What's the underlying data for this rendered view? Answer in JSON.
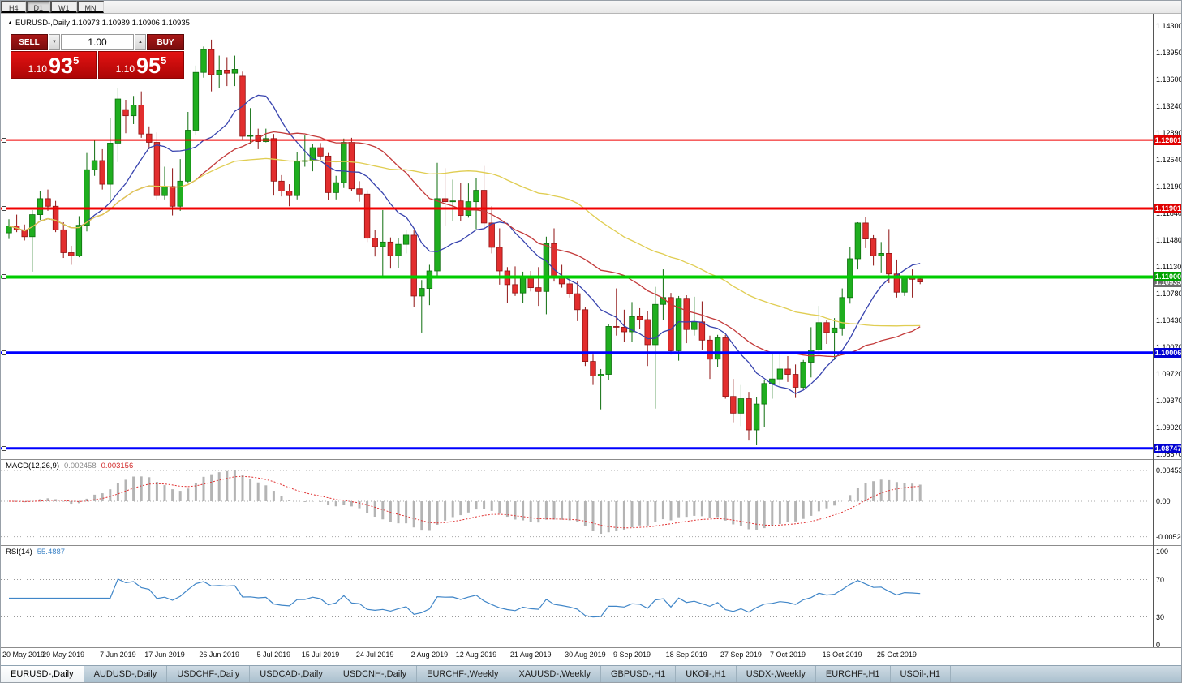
{
  "icons": {
    "expand_arrow": "▲",
    "volume_up": "▲",
    "volume_down": "▼"
  },
  "toolbar": {
    "timeframes": [
      {
        "label": "H4",
        "active": false
      },
      {
        "label": "D1",
        "active": true
      },
      {
        "label": "W1",
        "active": false
      },
      {
        "label": "MN",
        "active": false
      }
    ]
  },
  "chart_header": {
    "title": "EURUSD-,Daily 1.10973 1.10989 1.10906 1.10935"
  },
  "trade_panel": {
    "sell_label": "SELL",
    "buy_label": "BUY",
    "volume": "1.00",
    "sell_price": {
      "prefix": "1.10",
      "big": "93",
      "sup": "5"
    },
    "buy_price": {
      "prefix": "1.10",
      "big": "95",
      "sup": "5"
    }
  },
  "colors": {
    "bull": "#1fae1f",
    "bear": "#e22e2e",
    "bull_border": "#0e6e0e",
    "bear_border": "#8f1212",
    "hline_red": "#f00000",
    "hline_green": "#00cc00",
    "hline_blue": "#0000ff",
    "tag_red": "#e00000",
    "tag_green": "#00a300",
    "tag_blue": "#0000d2",
    "tag_current": "#6e6e6e",
    "macd_hist": "#b4b4b4",
    "macd_signal": "#e03232",
    "rsi_line": "#4086c8",
    "separator": "#8c8c8c"
  },
  "price_axis": [
    "1.14300",
    "1.13950",
    "1.13600",
    "1.13240",
    "1.12890",
    "1.12540",
    "1.12190",
    "1.11840",
    "1.11480",
    "1.11130",
    "1.10780",
    "1.10430",
    "1.10070",
    "1.09720",
    "1.09370",
    "1.09020",
    "1.08670"
  ],
  "hlines": [
    {
      "price": 1.12801,
      "label": "1.12801",
      "color_key": "red",
      "thick": 2
    },
    {
      "price": 1.11901,
      "label": "1.11901",
      "color_key": "red",
      "thick": 3
    },
    {
      "price": 1.11,
      "label": "1.11000",
      "color_key": "green",
      "thick": 4
    },
    {
      "price": 1.10006,
      "label": "1.10006",
      "color_key": "blue",
      "thick": 3
    },
    {
      "price": 1.08747,
      "label": "1.08747",
      "color_key": "blue",
      "thick": 3
    }
  ],
  "current_price_tag": {
    "price": 1.10935,
    "label": "1.10935"
  },
  "macd_panel": {
    "name": "MACD(12,26,9)",
    "main_value": "0.002458",
    "signal_value": "0.003156",
    "axis_labels": [
      "0.00453",
      "0.00",
      "-0.00520"
    ],
    "axis_values": [
      0.00453,
      0,
      -0.0052
    ]
  },
  "rsi_panel": {
    "name": "RSI(14)",
    "value": "55.4887",
    "axis_labels": [
      "100",
      "70",
      "30",
      "0"
    ],
    "axis_values": [
      100,
      70,
      30,
      0
    ],
    "level_lines": [
      70,
      30
    ]
  },
  "tabs": [
    {
      "label": "EURUSD-,Daily",
      "active": true
    },
    {
      "label": "AUDUSD-,Daily",
      "active": false
    },
    {
      "label": "USDCHF-,Daily",
      "active": false
    },
    {
      "label": "USDCAD-,Daily",
      "active": false
    },
    {
      "label": "USDCNH-,Daily",
      "active": false
    },
    {
      "label": "EURCHF-,Weekly",
      "active": false
    },
    {
      "label": "XAUUSD-,Weekly",
      "active": false
    },
    {
      "label": "GBPUSD-,H1",
      "active": false
    },
    {
      "label": "UKOil-,H1",
      "active": false
    },
    {
      "label": "USDX-,Weekly",
      "active": false
    },
    {
      "label": "EURCHF-,H1",
      "active": false
    },
    {
      "label": "USOil-,H1",
      "active": false
    }
  ],
  "chart_data": {
    "type": "candlestick",
    "symbol": "EURUSD-",
    "timeframe": "Daily",
    "ohlc": {
      "open": 1.10973,
      "high": 1.10989,
      "low": 1.10906,
      "close": 1.10935
    },
    "y_axis": {
      "top_price": 1.143,
      "bottom_price": 1.0867
    },
    "moving_averages": [
      {
        "name": "fast",
        "period": 10,
        "color": "#3743ae"
      },
      {
        "name": "medium",
        "period": 25,
        "color": "#c33a3a"
      },
      {
        "name": "slow",
        "period": 50,
        "color": "#e0cd52"
      }
    ],
    "indicators": {
      "macd": {
        "fast": 12,
        "slow": 26,
        "signal": 9
      },
      "rsi": {
        "period": 14
      }
    },
    "date_labels": [
      {
        "text": "20 May 2019",
        "index": 0
      },
      {
        "text": "29 May 2019",
        "index": 7
      },
      {
        "text": "7 Jun 2019",
        "index": 14
      },
      {
        "text": "17 Jun 2019",
        "index": 20
      },
      {
        "text": "26 Jun 2019",
        "index": 27
      },
      {
        "text": "5 Jul 2019",
        "index": 34
      },
      {
        "text": "15 Jul 2019",
        "index": 40
      },
      {
        "text": "24 Jul 2019",
        "index": 47
      },
      {
        "text": "2 Aug 2019",
        "index": 54
      },
      {
        "text": "12 Aug 2019",
        "index": 60
      },
      {
        "text": "21 Aug 2019",
        "index": 67
      },
      {
        "text": "30 Aug 2019",
        "index": 74
      },
      {
        "text": "9 Sep 2019",
        "index": 80
      },
      {
        "text": "18 Sep 2019",
        "index": 87
      },
      {
        "text": "27 Sep 2019",
        "index": 94
      },
      {
        "text": "7 Oct 2019",
        "index": 100
      },
      {
        "text": "16 Oct 2019",
        "index": 107
      },
      {
        "text": "25 Oct 2019",
        "index": 114
      }
    ],
    "candles": [
      [
        1.1158,
        1.1176,
        1.115,
        1.1167
      ],
      [
        1.1167,
        1.1182,
        1.1159,
        1.1162
      ],
      [
        1.1162,
        1.1169,
        1.1148,
        1.1153
      ],
      [
        1.1153,
        1.1188,
        1.1107,
        1.1182
      ],
      [
        1.1182,
        1.1213,
        1.1175,
        1.1203
      ],
      [
        1.1203,
        1.1215,
        1.1187,
        1.1193
      ],
      [
        1.1193,
        1.12,
        1.1159,
        1.1162
      ],
      [
        1.1162,
        1.1172,
        1.1125,
        1.1132
      ],
      [
        1.1132,
        1.1141,
        1.1116,
        1.1128
      ],
      [
        1.1128,
        1.118,
        1.1126,
        1.1168
      ],
      [
        1.1168,
        1.1263,
        1.116,
        1.1241
      ],
      [
        1.1241,
        1.128,
        1.1233,
        1.1253
      ],
      [
        1.1253,
        1.1268,
        1.1215,
        1.1222
      ],
      [
        1.1222,
        1.1309,
        1.1201,
        1.1276
      ],
      [
        1.1276,
        1.1348,
        1.1251,
        1.1334
      ],
      [
        1.132,
        1.1333,
        1.1289,
        1.1312
      ],
      [
        1.1312,
        1.1338,
        1.1301,
        1.1326
      ],
      [
        1.1326,
        1.1344,
        1.1283,
        1.1288
      ],
      [
        1.1288,
        1.1298,
        1.1268,
        1.1277
      ],
      [
        1.1277,
        1.129,
        1.1202,
        1.1207
      ],
      [
        1.1207,
        1.1245,
        1.1202,
        1.1219
      ],
      [
        1.1219,
        1.1243,
        1.1181,
        1.1193
      ],
      [
        1.1193,
        1.1255,
        1.1187,
        1.1226
      ],
      [
        1.1226,
        1.1317,
        1.1223,
        1.1293
      ],
      [
        1.1293,
        1.1378,
        1.1287,
        1.1369
      ],
      [
        1.1369,
        1.1403,
        1.1362,
        1.1399
      ],
      [
        1.1399,
        1.1412,
        1.1344,
        1.1366
      ],
      [
        1.1366,
        1.1391,
        1.1348,
        1.1372
      ],
      [
        1.1372,
        1.1389,
        1.1351,
        1.1368
      ],
      [
        1.1368,
        1.1391,
        1.1351,
        1.1373
      ],
      [
        1.1364,
        1.137,
        1.1281,
        1.1285
      ],
      [
        1.1285,
        1.1322,
        1.1275,
        1.1286
      ],
      [
        1.1286,
        1.1295,
        1.1268,
        1.1278
      ],
      [
        1.1278,
        1.1295,
        1.1277,
        1.1282
      ],
      [
        1.1282,
        1.1288,
        1.1207,
        1.1226
      ],
      [
        1.1226,
        1.1234,
        1.1206,
        1.1213
      ],
      [
        1.1213,
        1.1222,
        1.1193,
        1.1207
      ],
      [
        1.1207,
        1.1264,
        1.1202,
        1.1252
      ],
      [
        1.1252,
        1.1286,
        1.1245,
        1.1253
      ],
      [
        1.1253,
        1.1275,
        1.1239,
        1.127
      ],
      [
        1.127,
        1.1276,
        1.1254,
        1.1259
      ],
      [
        1.1259,
        1.1263,
        1.1201,
        1.1211
      ],
      [
        1.1211,
        1.1233,
        1.1202,
        1.1224
      ],
      [
        1.1224,
        1.1282,
        1.1217,
        1.1277
      ],
      [
        1.1277,
        1.1283,
        1.1213,
        1.1216
      ],
      [
        1.1216,
        1.1226,
        1.1199,
        1.1209
      ],
      [
        1.1209,
        1.1214,
        1.1146,
        1.1151
      ],
      [
        1.1151,
        1.1162,
        1.1127,
        1.114
      ],
      [
        1.114,
        1.1188,
        1.1101,
        1.1146
      ],
      [
        1.1146,
        1.1152,
        1.1111,
        1.1128
      ],
      [
        1.1128,
        1.1151,
        1.1112,
        1.1143
      ],
      [
        1.1143,
        1.1162,
        1.1131,
        1.1155
      ],
      [
        1.1155,
        1.1162,
        1.106,
        1.1075
      ],
      [
        1.1075,
        1.1096,
        1.1027,
        1.1085
      ],
      [
        1.1085,
        1.1116,
        1.1063,
        1.1108
      ],
      [
        1.1108,
        1.125,
        1.1101,
        1.1203
      ],
      [
        1.1203,
        1.1243,
        1.1167,
        1.1199
      ],
      [
        1.1199,
        1.1228,
        1.1173,
        1.12
      ],
      [
        1.12,
        1.1224,
        1.1174,
        1.1181
      ],
      [
        1.1181,
        1.1223,
        1.1178,
        1.1199
      ],
      [
        1.1199,
        1.123,
        1.1163,
        1.1214
      ],
      [
        1.1214,
        1.1246,
        1.1162,
        1.1171
      ],
      [
        1.1171,
        1.1193,
        1.1131,
        1.1139
      ],
      [
        1.1139,
        1.1164,
        1.109,
        1.1108
      ],
      [
        1.1108,
        1.1113,
        1.1066,
        1.109
      ],
      [
        1.109,
        1.1114,
        1.1075,
        1.1079
      ],
      [
        1.1079,
        1.1107,
        1.1066,
        1.11
      ],
      [
        1.11,
        1.1108,
        1.1081,
        1.1086
      ],
      [
        1.1086,
        1.1113,
        1.1062,
        1.1081
      ],
      [
        1.1081,
        1.1153,
        1.1051,
        1.1144
      ],
      [
        1.1144,
        1.1164,
        1.1094,
        1.1101
      ],
      [
        1.1101,
        1.1116,
        1.1086,
        1.1091
      ],
      [
        1.1091,
        1.1098,
        1.1073,
        1.1078
      ],
      [
        1.1078,
        1.1094,
        1.1042,
        1.1057
      ],
      [
        1.1057,
        1.1061,
        1.0983,
        1.0989
      ],
      [
        1.0989,
        1.0998,
        1.0958,
        1.097
      ],
      [
        1.097,
        1.0979,
        1.0926,
        1.0972
      ],
      [
        1.0972,
        1.1038,
        1.0965,
        1.1035
      ],
      [
        1.1035,
        1.1085,
        1.1023,
        1.1034
      ],
      [
        1.1034,
        1.1057,
        1.1015,
        1.1028
      ],
      [
        1.1028,
        1.1067,
        1.1015,
        1.1048
      ],
      [
        1.1048,
        1.1059,
        1.1032,
        1.1044
      ],
      [
        1.1044,
        1.1055,
        1.0983,
        1.1011
      ],
      [
        1.1011,
        1.1087,
        1.0927,
        1.1064
      ],
      [
        1.1064,
        1.111,
        1.1043,
        1.1073
      ],
      [
        1.1073,
        1.1079,
        1.0998,
        1.1003
      ],
      [
        1.1003,
        1.1075,
        1.099,
        1.1072
      ],
      [
        1.1072,
        1.1076,
        1.1013,
        1.1031
      ],
      [
        1.1031,
        1.1074,
        1.1023,
        1.1041
      ],
      [
        1.1041,
        1.1068,
        1.1004,
        1.1017
      ],
      [
        1.1017,
        1.1023,
        1.0966,
        1.0992
      ],
      [
        1.0992,
        1.1024,
        1.0982,
        1.102
      ],
      [
        1.102,
        1.1024,
        1.094,
        1.0943
      ],
      [
        1.0943,
        1.0966,
        1.0909,
        1.0921
      ],
      [
        1.0921,
        1.0958,
        1.0904,
        1.094
      ],
      [
        1.094,
        1.0949,
        1.0885,
        1.0899
      ],
      [
        1.0899,
        1.0942,
        1.0879,
        1.0933
      ],
      [
        1.0933,
        1.0965,
        1.0903,
        1.096
      ],
      [
        1.096,
        1.0999,
        1.094,
        1.0966
      ],
      [
        1.0966,
        1.0999,
        1.0957,
        1.0979
      ],
      [
        1.0979,
        1.0996,
        1.0962,
        1.0972
      ],
      [
        1.0972,
        1.0985,
        1.0941,
        1.0955
      ],
      [
        1.0955,
        1.0991,
        1.0953,
        1.0988
      ],
      [
        1.0988,
        1.1034,
        1.0968,
        1.1004
      ],
      [
        1.1004,
        1.1062,
        1.1002,
        1.104
      ],
      [
        1.104,
        1.1043,
        1.1012,
        1.1027
      ],
      [
        1.1027,
        1.1046,
        1.0991,
        1.1033
      ],
      [
        1.1033,
        1.1085,
        1.1023,
        1.1073
      ],
      [
        1.1073,
        1.114,
        1.1065,
        1.1124
      ],
      [
        1.1124,
        1.1172,
        1.111,
        1.1171
      ],
      [
        1.1171,
        1.1179,
        1.1138,
        1.115
      ],
      [
        1.115,
        1.1155,
        1.1115,
        1.1128
      ],
      [
        1.1128,
        1.1146,
        1.1106,
        1.1131
      ],
      [
        1.1131,
        1.1163,
        1.1092,
        1.1104
      ],
      [
        1.1104,
        1.1123,
        1.1073,
        1.108
      ],
      [
        1.108,
        1.1102,
        1.1075,
        1.1099
      ],
      [
        1.1099,
        1.111,
        1.1073,
        1.1097
      ],
      [
        1.10973,
        1.10989,
        1.10906,
        1.10935
      ]
    ]
  }
}
